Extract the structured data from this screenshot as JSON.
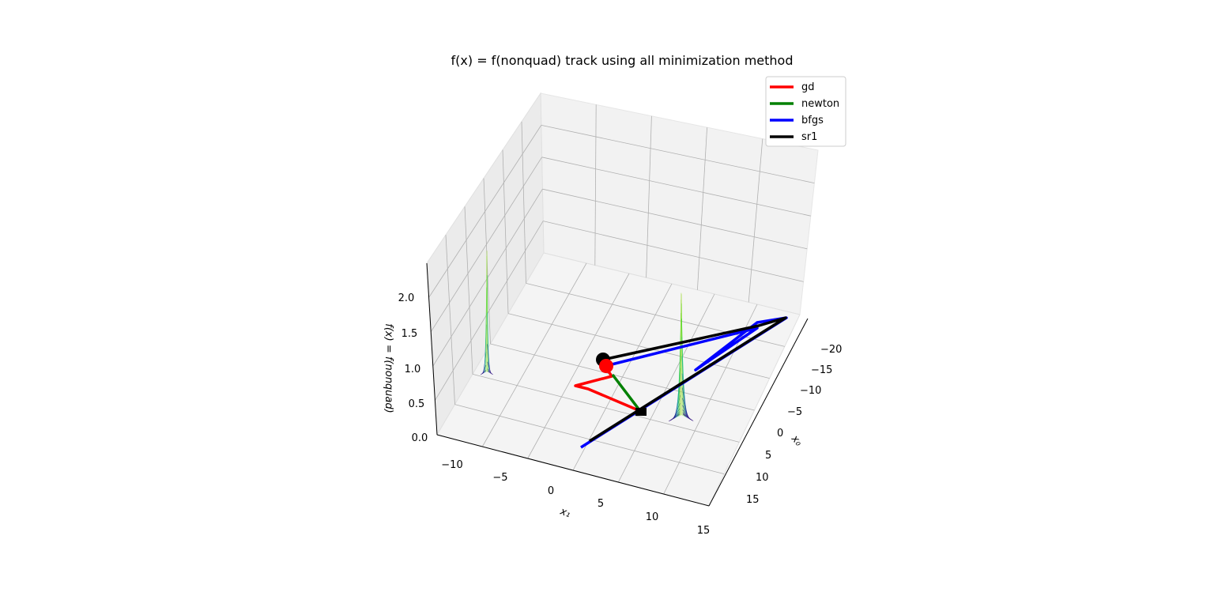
{
  "chart_data": {
    "type": "line",
    "projection": "3d",
    "title": "f(x) = f(nonquad) track using all minimization method",
    "xlabel": "x₀",
    "ylabel": "x₁",
    "zlabel": "f(x) = f(nonquad)",
    "x_ticks": [
      "−20",
      "−15",
      "−10",
      "−5",
      "0",
      "5",
      "10",
      "15"
    ],
    "y_ticks": [
      "−10",
      "−5",
      "0",
      "5",
      "10",
      "15"
    ],
    "z_ticks": [
      "0.0",
      "0.5",
      "1.0",
      "1.5",
      "2.0"
    ],
    "xlim": [
      -22,
      18
    ],
    "ylim": [
      -12,
      16
    ],
    "zlim": [
      0,
      2.3
    ],
    "grid": true,
    "legend_position": "top-right",
    "series": [
      {
        "name": "gd",
        "color": "#ff0000"
      },
      {
        "name": "newton",
        "color": "#008000"
      },
      {
        "name": "bfgs",
        "color": "#0000ff"
      },
      {
        "name": "sr1",
        "color": "#000000"
      }
    ]
  }
}
